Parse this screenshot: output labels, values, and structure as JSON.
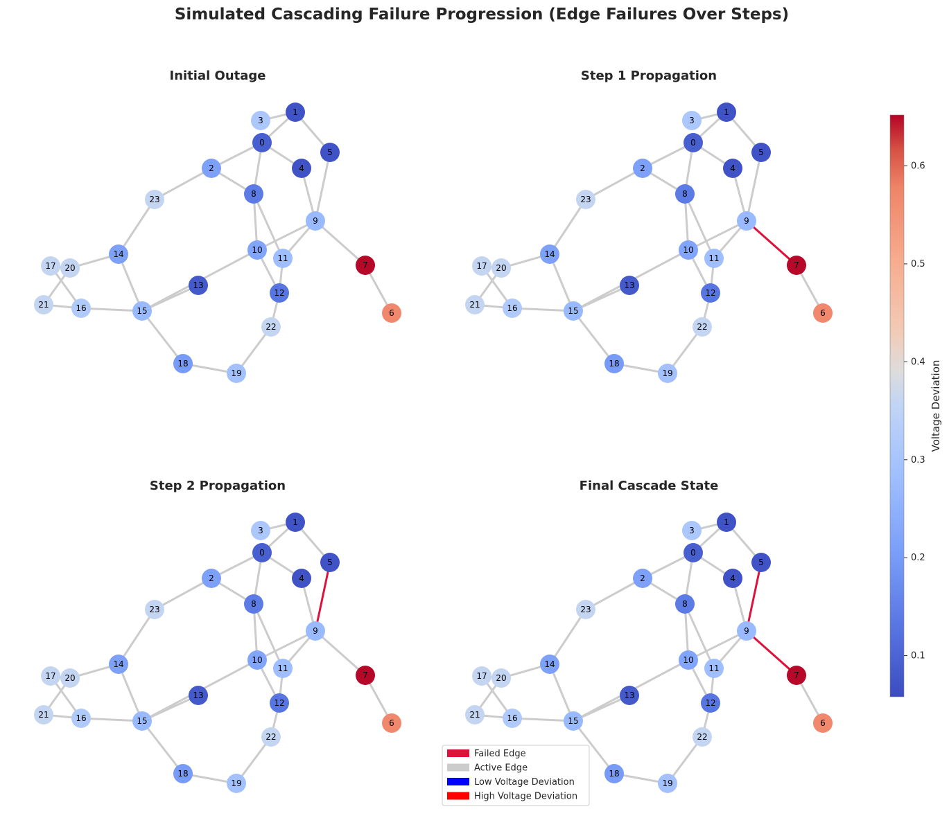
{
  "figure_title": "Simulated Cascading Failure Progression (Edge Failures Over Steps)",
  "colors": {
    "failed_edge": "#dc143c",
    "active_edge": "#cccccc",
    "low_voltage": "#0000ff",
    "high_voltage": "#ff0000"
  },
  "colorbar": {
    "label": "Voltage Deviation",
    "min": 0.058,
    "max": 0.652,
    "ticks": [
      "0.1",
      "0.2",
      "0.3",
      "0.4",
      "0.5",
      "0.6"
    ],
    "tick_values": [
      0.1,
      0.2,
      0.3,
      0.4,
      0.5,
      0.6
    ]
  },
  "legend": [
    {
      "label": "Failed Edge",
      "color": "#dc143c"
    },
    {
      "label": "Active Edge",
      "color": "#cccccc"
    },
    {
      "label": "Low Voltage Deviation",
      "color": "#0000ff"
    },
    {
      "label": "High Voltage Deviation",
      "color": "#ff0000"
    }
  ],
  "chart_data": {
    "type": "network",
    "nodes": [
      {
        "id": "0",
        "voltage_deviation": 0.09
      },
      {
        "id": "1",
        "voltage_deviation": 0.07
      },
      {
        "id": "2",
        "voltage_deviation": 0.21
      },
      {
        "id": "3",
        "voltage_deviation": 0.31
      },
      {
        "id": "4",
        "voltage_deviation": 0.07
      },
      {
        "id": "5",
        "voltage_deviation": 0.07
      },
      {
        "id": "6",
        "voltage_deviation": 0.57
      },
      {
        "id": "7",
        "voltage_deviation": 0.65
      },
      {
        "id": "8",
        "voltage_deviation": 0.14
      },
      {
        "id": "9",
        "voltage_deviation": 0.27
      },
      {
        "id": "10",
        "voltage_deviation": 0.22
      },
      {
        "id": "11",
        "voltage_deviation": 0.28
      },
      {
        "id": "12",
        "voltage_deviation": 0.13
      },
      {
        "id": "13",
        "voltage_deviation": 0.08
      },
      {
        "id": "14",
        "voltage_deviation": 0.21
      },
      {
        "id": "15",
        "voltage_deviation": 0.27
      },
      {
        "id": "16",
        "voltage_deviation": 0.32
      },
      {
        "id": "17",
        "voltage_deviation": 0.36
      },
      {
        "id": "18",
        "voltage_deviation": 0.2
      },
      {
        "id": "19",
        "voltage_deviation": 0.29
      },
      {
        "id": "20",
        "voltage_deviation": 0.36
      },
      {
        "id": "21",
        "voltage_deviation": 0.36
      },
      {
        "id": "22",
        "voltage_deviation": 0.36
      },
      {
        "id": "23",
        "voltage_deviation": 0.36
      }
    ],
    "edges": [
      [
        "3",
        "1"
      ],
      [
        "1",
        "0"
      ],
      [
        "1",
        "5"
      ],
      [
        "0",
        "2"
      ],
      [
        "0",
        "4"
      ],
      [
        "0",
        "8"
      ],
      [
        "2",
        "23"
      ],
      [
        "2",
        "8"
      ],
      [
        "4",
        "9"
      ],
      [
        "5",
        "9"
      ],
      [
        "9",
        "7"
      ],
      [
        "9",
        "10"
      ],
      [
        "9",
        "11"
      ],
      [
        "7",
        "6"
      ],
      [
        "8",
        "10"
      ],
      [
        "8",
        "11"
      ],
      [
        "10",
        "12"
      ],
      [
        "10",
        "15"
      ],
      [
        "11",
        "12"
      ],
      [
        "12",
        "22"
      ],
      [
        "13",
        "15"
      ],
      [
        "23",
        "14"
      ],
      [
        "14",
        "20"
      ],
      [
        "14",
        "15"
      ],
      [
        "17",
        "20"
      ],
      [
        "17",
        "16"
      ],
      [
        "20",
        "21"
      ],
      [
        "21",
        "16"
      ],
      [
        "16",
        "15"
      ],
      [
        "15",
        "18"
      ],
      [
        "18",
        "19"
      ],
      [
        "19",
        "22"
      ]
    ],
    "panels": [
      {
        "title": "Initial Outage",
        "failed_edges": []
      },
      {
        "title": "Step 1 Propagation",
        "failed_edges": [
          [
            "9",
            "7"
          ]
        ]
      },
      {
        "title": "Step 2 Propagation",
        "failed_edges": [
          [
            "5",
            "9"
          ]
        ]
      },
      {
        "title": "Final Cascade State",
        "failed_edges": [
          [
            "9",
            "7"
          ],
          [
            "5",
            "9"
          ]
        ]
      }
    ]
  }
}
